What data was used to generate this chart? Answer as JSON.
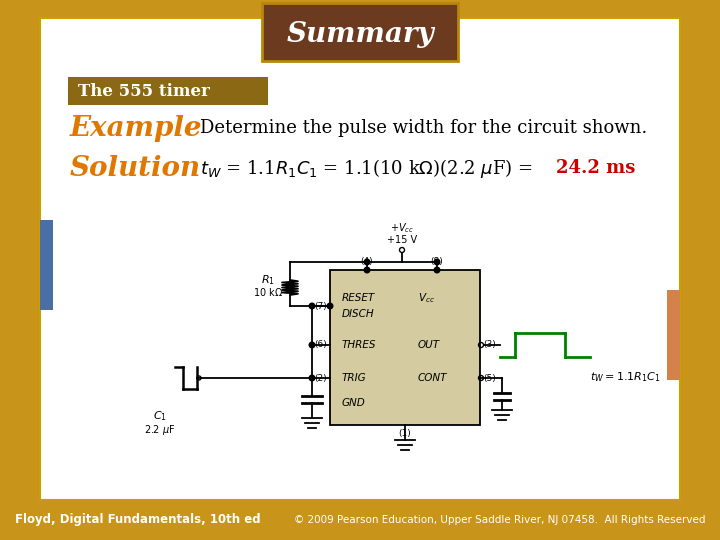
{
  "title": "Summary",
  "subtitle": "The 555 timer",
  "example_label": "Example",
  "solution_label": "Solution",
  "example_text": "Determine the pulse width for the circuit shown.",
  "footer_left": "Floyd, Digital Fundamentals, 10th ed",
  "footer_right": "© 2009 Pearson Education, Upper Saddle River, NJ 07458.  All Rights Reserved",
  "bg_outer_color": "#c8941a",
  "bg_inner_color": "#ffffff",
  "title_box_color": "#6b3a1f",
  "title_box_border": "#b8860b",
  "title_text_color": "#ffffff",
  "subtitle_box_color": "#8B6914",
  "subtitle_text_color": "#ffffff",
  "example_color": "#e07800",
  "solution_color": "#e07800",
  "highlight_red": "#cc0000",
  "circuit_box_color": "#d4cba0",
  "circuit_line_color": "#000000",
  "output_pulse_color": "#008000",
  "left_accent_color": "#4a6fa5",
  "right_accent_color": "#d4824a"
}
